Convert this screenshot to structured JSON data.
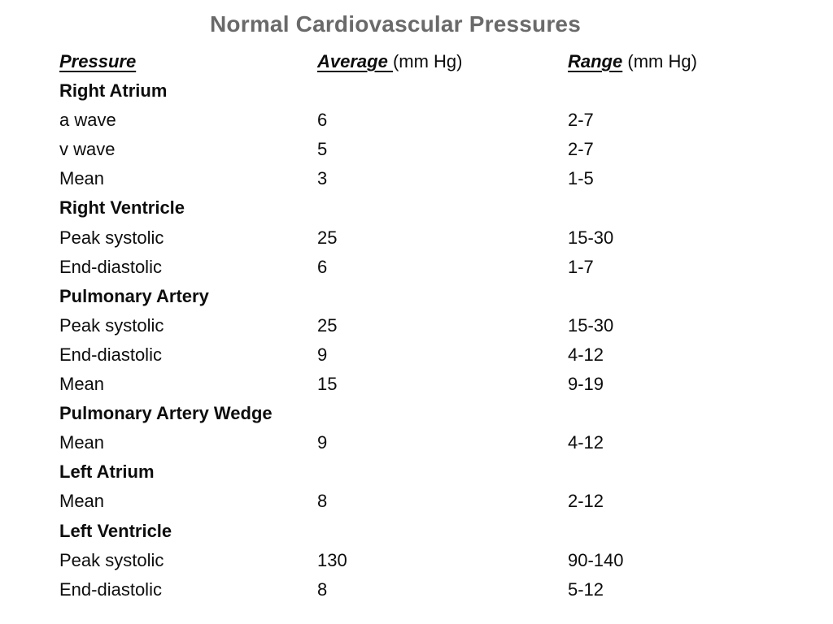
{
  "slide_title": "Normal Cardiovascular Pressures",
  "colors": {
    "title_text": "#6a6a6a",
    "body_text": "#0d0d0d",
    "background": "#ffffff"
  },
  "table": {
    "header": {
      "pressure": "Pressure",
      "average": "Average ",
      "average_unit": "(mm Hg)",
      "range": "Range",
      "range_unit": " (mm Hg)"
    },
    "rows": [
      {
        "label": "Right Atrium",
        "average": "",
        "range": "",
        "section": true
      },
      {
        "label": "a wave",
        "average": "6",
        "range": "2-7",
        "section": false
      },
      {
        "label": "v wave",
        "average": "5",
        "range": "2-7",
        "section": false
      },
      {
        "label": "Mean",
        "average": "3",
        "range": "1-5",
        "section": false
      },
      {
        "label": "Right Ventricle",
        "average": "",
        "range": "",
        "section": true
      },
      {
        "label": "Peak systolic",
        "average": "25",
        "range": "15-30",
        "section": false
      },
      {
        "label": "End-diastolic",
        "average": "6",
        "range": "1-7",
        "section": false
      },
      {
        "label": "Pulmonary Artery",
        "average": "",
        "range": "",
        "section": true
      },
      {
        "label": "Peak systolic",
        "average": "25",
        "range": "15-30",
        "section": false
      },
      {
        "label": "End-diastolic",
        "average": "9",
        "range": "4-12",
        "section": false
      },
      {
        "label": "Mean",
        "average": "15",
        "range": "9-19",
        "section": false
      },
      {
        "label": "Pulmonary Artery Wedge",
        "average": "",
        "range": "",
        "section": true
      },
      {
        "label": "Mean",
        "average": "9",
        "range": "4-12",
        "section": false
      },
      {
        "label": "Left Atrium",
        "average": "",
        "range": "",
        "section": true
      },
      {
        "label": "Mean",
        "average": "8",
        "range": "2-12",
        "section": false
      },
      {
        "label": "Left Ventricle",
        "average": "",
        "range": "",
        "section": true
      },
      {
        "label": "Peak systolic",
        "average": "130",
        "range": "90-140",
        "section": false
      },
      {
        "label": "End-diastolic",
        "average": "8",
        "range": "5-12",
        "section": false
      }
    ]
  }
}
